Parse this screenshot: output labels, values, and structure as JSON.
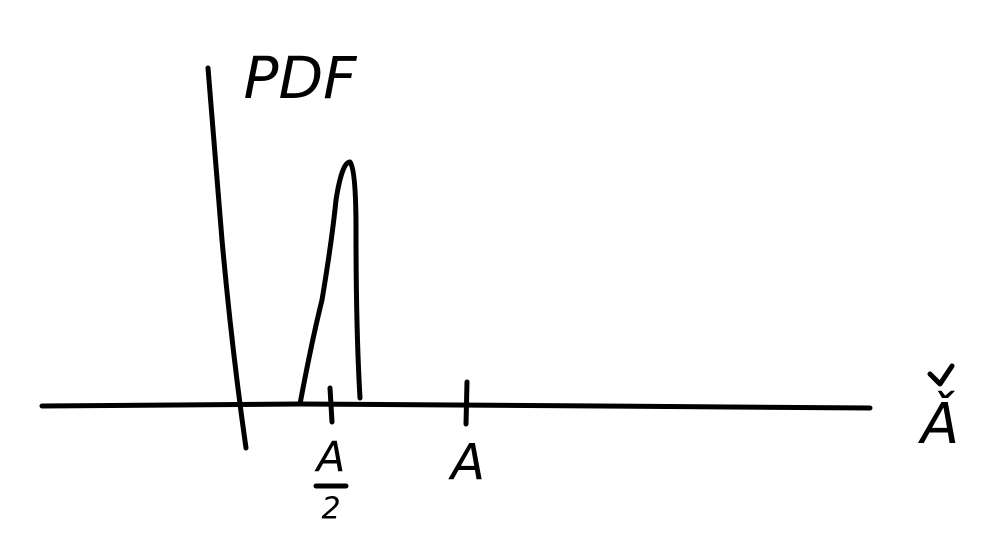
{
  "y_axis_label": "PDF",
  "x_axis_label": "Ǎ",
  "ticks": [
    {
      "top": "A",
      "bottom": "2"
    },
    "A"
  ]
}
